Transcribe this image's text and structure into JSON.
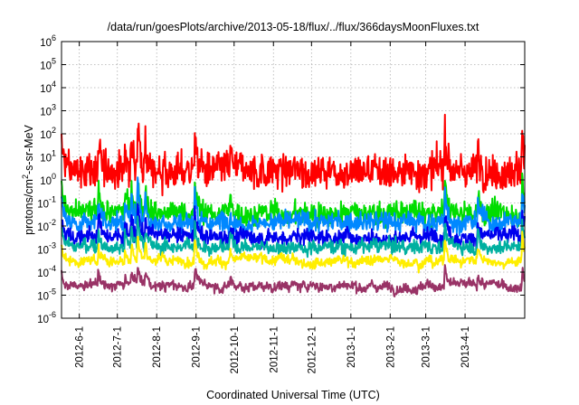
{
  "chart_data": {
    "type": "line",
    "title": "/data/run/goesPlots/archive/2013-05-18/flux/../flux/366daysMoonFluxes.txt",
    "xlabel": "Coordinated Universal Time (UTC)",
    "ylabel": {
      "prefix": "protons/cm",
      "sup": "2",
      "suffix": "-s-sr-MeV"
    },
    "yscale": "log",
    "ylim": [
      1e-06,
      1000000.0
    ],
    "xlim": [
      "2012-05-18",
      "2013-05-18"
    ],
    "grid": true,
    "legend": "none",
    "y_ticks": [
      {
        "value": -6,
        "base": "10",
        "exp": "-6"
      },
      {
        "value": -5,
        "base": "10",
        "exp": "-5"
      },
      {
        "value": -4,
        "base": "10",
        "exp": "-4"
      },
      {
        "value": -3,
        "base": "10",
        "exp": "-3"
      },
      {
        "value": -2,
        "base": "10",
        "exp": "-2"
      },
      {
        "value": -1,
        "base": "10",
        "exp": "-1"
      },
      {
        "value": 0,
        "base": "10",
        "exp": "0"
      },
      {
        "value": 1,
        "base": "10",
        "exp": "1"
      },
      {
        "value": 2,
        "base": "10",
        "exp": "2"
      },
      {
        "value": 3,
        "base": "10",
        "exp": "3"
      },
      {
        "value": 4,
        "base": "10",
        "exp": "4"
      },
      {
        "value": 5,
        "base": "10",
        "exp": "5"
      },
      {
        "value": 6,
        "base": "10",
        "exp": "6"
      }
    ],
    "x_ticks": [
      {
        "date": "2012-06-01",
        "label": "2012-6-1"
      },
      {
        "date": "2012-07-01",
        "label": "2012-7-1"
      },
      {
        "date": "2012-08-01",
        "label": "2012-8-1"
      },
      {
        "date": "2012-09-01",
        "label": "2012-9-1"
      },
      {
        "date": "2012-10-01",
        "label": "2012-10-1"
      },
      {
        "date": "2012-11-01",
        "label": "2012-11-1"
      },
      {
        "date": "2012-12-01",
        "label": "2012-12-1"
      },
      {
        "date": "2013-01-01",
        "label": "2013-1-1"
      },
      {
        "date": "2013-02-01",
        "label": "2013-2-1"
      },
      {
        "date": "2013-03-01",
        "label": "2013-3-1"
      },
      {
        "date": "2013-04-01",
        "label": "2013-4-1"
      }
    ],
    "events": [
      {
        "date": "2012-05-18",
        "amp": 1.3
      },
      {
        "date": "2012-06-16",
        "amp": 1.2
      },
      {
        "date": "2012-07-07",
        "amp": 1.0
      },
      {
        "date": "2012-07-12",
        "amp": 1.4
      },
      {
        "date": "2012-07-17",
        "amp": 2.0
      },
      {
        "date": "2012-07-23",
        "amp": 1.3
      },
      {
        "date": "2012-08-31",
        "amp": 1.6
      },
      {
        "date": "2012-09-28",
        "amp": 0.7
      },
      {
        "date": "2013-03-16",
        "amp": 1.7
      },
      {
        "date": "2013-04-11",
        "amp": 1.0
      },
      {
        "date": "2013-05-16",
        "amp": 1.7
      }
    ],
    "series": [
      {
        "color": "#ff0000",
        "base": 2.5,
        "noise": 0.55
      },
      {
        "color": "#00dd00",
        "base": 0.035,
        "noise": 0.35
      },
      {
        "color": "#0088ff",
        "base": 0.015,
        "noise": 0.3
      },
      {
        "color": "#0000ee",
        "base": 0.0035,
        "noise": 0.25
      },
      {
        "color": "#00b0a0",
        "base": 0.0013,
        "noise": 0.2
      },
      {
        "color": "#ffee00",
        "base": 0.00032,
        "noise": 0.14
      },
      {
        "color": "#993366",
        "base": 2.5e-05,
        "noise": 0.14
      }
    ]
  }
}
